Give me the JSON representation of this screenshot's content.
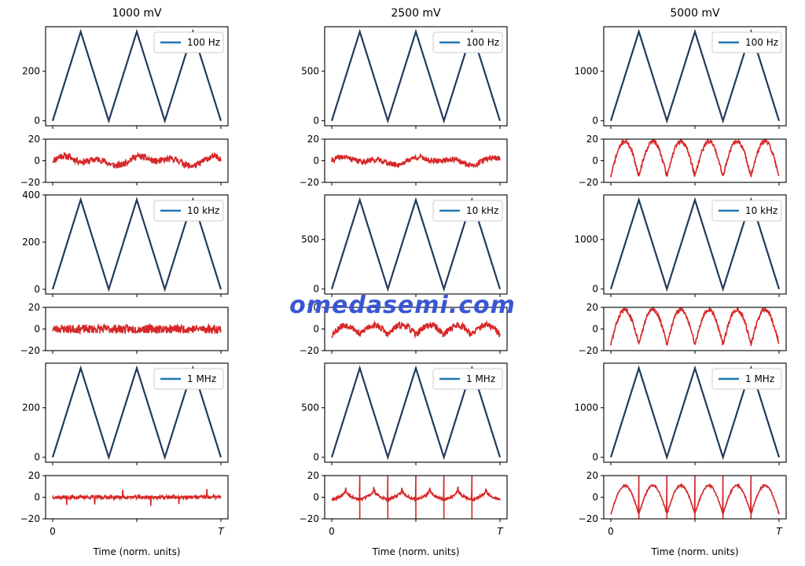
{
  "watermark": "omedasemi.com",
  "colors": {
    "signal": "#1f3b5e",
    "legend_line": "#1f77b4",
    "residual": "#d62728"
  },
  "chart_data": [
    {
      "type": "line",
      "title": "1000 mV",
      "rows": [
        {
          "legend": "100 Hz",
          "yticks": [
            0,
            200
          ],
          "ylim": [
            -20,
            380
          ],
          "peak": 360,
          "residual_seed": 11,
          "residual_noise": 3,
          "residual_shape": "wander",
          "residual_amp": 5
        },
        {
          "legend": "10 kHz",
          "yticks": [
            0,
            200,
            400
          ],
          "ylim": [
            -20,
            400
          ],
          "peak": 380,
          "residual_seed": 23,
          "residual_noise": 4,
          "residual_shape": "flat",
          "residual_amp": 0
        },
        {
          "legend": "1 MHz",
          "yticks": [
            0,
            200
          ],
          "ylim": [
            -20,
            380
          ],
          "peak": 360,
          "residual_seed": 37,
          "residual_noise": 1.6,
          "residual_shape": "spikes-small",
          "residual_amp": 8
        }
      ],
      "residual_ylim": [
        -20,
        20
      ],
      "residual_yticks": [
        20,
        0,
        -20
      ],
      "xticks": [
        "0",
        "T"
      ],
      "xlabel": "Time (norm. units)"
    },
    {
      "type": "line",
      "title": "2500 mV",
      "rows": [
        {
          "legend": "100 Hz",
          "yticks": [
            0,
            500
          ],
          "ylim": [
            -50,
            950
          ],
          "peak": 900,
          "residual_seed": 41,
          "residual_noise": 2.5,
          "residual_shape": "wander",
          "residual_amp": 4
        },
        {
          "legend": "10 kHz",
          "yticks": [
            0,
            500
          ],
          "ylim": [
            -50,
            950
          ],
          "peak": 900,
          "residual_seed": 53,
          "residual_noise": 3,
          "residual_shape": "arches",
          "residual_amp": 9
        },
        {
          "legend": "1 MHz",
          "yticks": [
            0,
            500
          ],
          "ylim": [
            -50,
            950
          ],
          "peak": 900,
          "residual_seed": 67,
          "residual_noise": 1.2,
          "residual_shape": "cusps",
          "residual_amp": 7
        }
      ],
      "residual_ylim": [
        -20,
        20
      ],
      "residual_yticks": [
        20,
        0,
        -20
      ],
      "xticks": [
        "0",
        "T"
      ],
      "xlabel": "Time (norm. units)"
    },
    {
      "type": "line",
      "title": "5000 mV",
      "rows": [
        {
          "legend": "100 Hz",
          "yticks": [
            0,
            1000
          ],
          "ylim": [
            -100,
            1900
          ],
          "peak": 1800,
          "residual_seed": 71,
          "residual_noise": 2,
          "residual_shape": "big-arches",
          "residual_amp": 18
        },
        {
          "legend": "10 kHz",
          "yticks": [
            0,
            1000
          ],
          "ylim": [
            -100,
            1900
          ],
          "peak": 1800,
          "residual_seed": 83,
          "residual_noise": 2,
          "residual_shape": "big-arches",
          "residual_amp": 18
        },
        {
          "legend": "1 MHz",
          "yticks": [
            0,
            1000
          ],
          "ylim": [
            -100,
            1900
          ],
          "peak": 1800,
          "residual_seed": 97,
          "residual_noise": 0.8,
          "residual_shape": "big-cusps",
          "residual_amp": 12
        }
      ],
      "residual_ylim": [
        -20,
        20
      ],
      "residual_yticks": [
        20,
        0,
        -20
      ],
      "xticks": [
        "0",
        "T"
      ],
      "xlabel": "Time (norm. units)"
    }
  ]
}
